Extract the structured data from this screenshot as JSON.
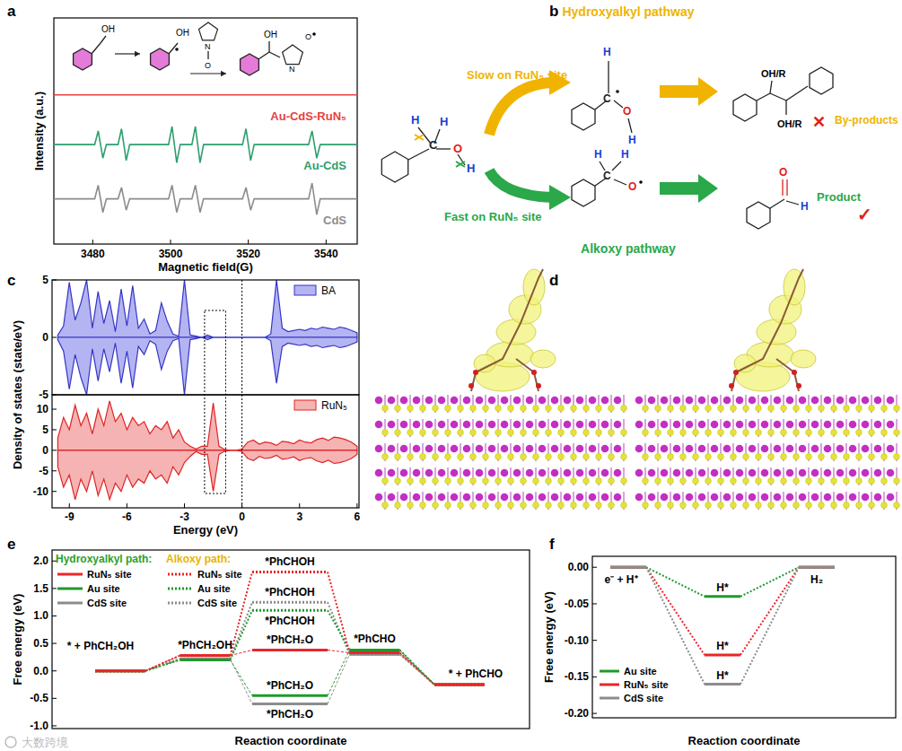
{
  "panel_labels": [
    "a",
    "b",
    "c",
    "d",
    "e",
    "f"
  ],
  "watermark": "大数跨境",
  "scheme": {
    "top_title": "Hydroxyalkyl pathway",
    "bottom_title": "Alkoxy pathway",
    "slow": "Slow on RuN₅ site",
    "fast": "Fast on RuN₅ site",
    "byproducts": "By-products",
    "product": "Product",
    "cross": "✕",
    "check": "✓",
    "reactant_atoms": [
      "H",
      "H",
      "C",
      "O",
      "H"
    ],
    "hydroxyalkyl_atoms": [
      "H",
      "C",
      "O",
      "H"
    ],
    "alkoxy_atoms": [
      "H",
      "H",
      "C",
      "O"
    ],
    "diol_groups": [
      "OH/R",
      "OH/R"
    ],
    "aldehyde_atoms": [
      "O",
      "H"
    ]
  },
  "chart_data": [
    {
      "type": "line",
      "x_label": "Magnetic field(G)",
      "y_label": "Intensity (a.u.)",
      "xlim": [
        3470,
        3548
      ],
      "xticks": [
        3480,
        3500,
        3520,
        3540
      ],
      "ylim": [
        0,
        10
      ],
      "tick_labels": "x",
      "inset_labels": [
        "OH",
        "OH",
        "N",
        "O",
        "OH",
        "N",
        "O"
      ],
      "x": [
        3470,
        3480.5,
        3481.4,
        3482.6,
        3483.5,
        3486.5,
        3487.4,
        3488.6,
        3489.5,
        3499.5,
        3500.4,
        3501.6,
        3502.5,
        3505.5,
        3506.4,
        3507.6,
        3508.5,
        3518.5,
        3519.4,
        3520.6,
        3521.5,
        3535.5,
        3536.4,
        3537.6,
        3538.5,
        3548
      ],
      "series": [
        {
          "name": "Au-CdS-RuN₅",
          "color": "#e8413c",
          "values": [
            6.6,
            6.6,
            6.6,
            6.6,
            6.6,
            6.6,
            6.6,
            6.6,
            6.6,
            6.6,
            6.6,
            6.6,
            6.6,
            6.6,
            6.6,
            6.6,
            6.6,
            6.6,
            6.6,
            6.6,
            6.6,
            6.6,
            6.6,
            6.6,
            6.6,
            6.6
          ]
        },
        {
          "name": "Au-CdS",
          "color": "#2e9e6e",
          "values": [
            4.4,
            4.4,
            5.0,
            3.8,
            4.4,
            4.4,
            5.1,
            3.7,
            4.4,
            4.4,
            5.2,
            3.6,
            4.4,
            4.4,
            5.2,
            3.6,
            4.4,
            4.4,
            5.1,
            3.7,
            4.4,
            4.4,
            5.0,
            3.8,
            4.4,
            4.4
          ]
        },
        {
          "name": "CdS",
          "color": "#8c8c8c",
          "values": [
            2.0,
            2.0,
            2.6,
            1.4,
            2.0,
            2.0,
            2.5,
            1.5,
            2.0,
            2.0,
            2.6,
            1.4,
            2.0,
            2.0,
            2.6,
            1.4,
            2.0,
            2.0,
            2.5,
            1.5,
            2.0,
            2.0,
            2.7,
            1.3,
            2.0,
            2.0
          ]
        }
      ]
    },
    {
      "type": "area",
      "x_label": "Energy (eV)",
      "y_label": "Density of states (state/eV)",
      "xlim": [
        -9.9,
        6.1
      ],
      "xticks": [
        -9,
        -6,
        -3,
        0,
        3,
        6
      ],
      "fermi_level": 0,
      "highlight_x": [
        -1.95,
        -0.85
      ],
      "x": [
        -9.6,
        -9.3,
        -9.0,
        -8.7,
        -8.4,
        -8.1,
        -7.8,
        -7.5,
        -7.2,
        -6.9,
        -6.6,
        -6.3,
        -6.0,
        -5.7,
        -5.4,
        -5.1,
        -4.8,
        -4.5,
        -4.2,
        -3.9,
        -3.6,
        -3.3,
        -3.0,
        -2.7,
        -2.4,
        -2.1,
        -1.8,
        -1.5,
        -1.2,
        -0.9,
        -0.6,
        -0.3,
        0,
        0.3,
        0.6,
        0.9,
        1.2,
        1.5,
        1.8,
        2.1,
        2.4,
        2.7,
        3.0,
        3.3,
        3.6,
        3.9,
        4.2,
        4.5,
        4.8,
        5.1,
        5.4,
        5.7,
        6.0
      ],
      "panels": [
        {
          "name": "BA",
          "color": "#3535c8",
          "fill": "#b4b4f2",
          "ylim": [
            -5,
            5
          ],
          "yticks": [
            -5,
            0,
            5
          ],
          "up": [
            0.2,
            1.0,
            4.8,
            1.5,
            3.0,
            5.0,
            0.8,
            4.0,
            1.2,
            3.2,
            0.5,
            4.2,
            1.0,
            4.5,
            0.8,
            1.6,
            0.3,
            0.6,
            3.0,
            1.4,
            0.3,
            0.1,
            5.0,
            0.2,
            0.1,
            0,
            0.2,
            0,
            0,
            0,
            0,
            0,
            0,
            0,
            0,
            0,
            0,
            0.3,
            5.0,
            0.8,
            0.5,
            0.6,
            0.7,
            0.6,
            0.8,
            0.7,
            0.9,
            0.8,
            0.7,
            0.9,
            0.8,
            0.6,
            0.4
          ],
          "down": [
            -0.2,
            -1.2,
            -4.5,
            -1.5,
            -3.5,
            -5.0,
            -1.0,
            -3.8,
            -1.0,
            -3.0,
            -0.5,
            -4.0,
            -1.2,
            -4.4,
            -0.8,
            -1.5,
            -0.3,
            -0.6,
            -2.8,
            -1.2,
            -0.3,
            -0.1,
            -5.0,
            -0.2,
            -0.1,
            0,
            -0.2,
            0,
            0,
            0,
            0,
            0,
            0,
            0,
            0,
            0,
            0,
            -0.3,
            -4.0,
            -0.8,
            -0.5,
            -0.6,
            -0.7,
            -0.6,
            -0.8,
            -0.7,
            -0.9,
            -0.8,
            -0.7,
            -0.9,
            -0.8,
            -0.6,
            -0.4
          ]
        },
        {
          "name": "RuN₅",
          "color": "#e02424",
          "fill": "#f5b3b3",
          "ylim": [
            -14,
            13.5
          ],
          "yticks": [
            -10,
            -5,
            0,
            5,
            10
          ],
          "up": [
            3,
            8,
            5,
            11,
            6,
            9,
            4,
            10,
            6,
            12,
            7,
            9,
            5,
            8,
            6,
            7,
            4,
            6,
            5,
            7,
            3,
            5,
            2,
            1,
            0.3,
            1,
            1,
            11.5,
            1,
            0.2,
            0,
            0,
            0.3,
            2,
            2.5,
            1.5,
            2,
            1.8,
            1.2,
            2.2,
            2,
            1.6,
            2.5,
            2,
            1.8,
            2.6,
            3,
            2.4,
            3.2,
            3,
            2.6,
            2,
            1
          ],
          "down": [
            -4,
            -9,
            -6,
            -12,
            -7,
            -10,
            -5,
            -11,
            -7,
            -12,
            -8,
            -10,
            -6,
            -9,
            -7,
            -8,
            -5,
            -7,
            -6,
            -8,
            -4,
            -6,
            -3,
            -1.5,
            -0.3,
            -1,
            -1,
            -10,
            -1,
            -0.2,
            0,
            0,
            -0.3,
            -2,
            -2.5,
            -1.5,
            -2,
            -1.8,
            -1.2,
            -2.2,
            -2,
            -1.6,
            -2.5,
            -2,
            -1.8,
            -2.6,
            -3,
            -2.4,
            -3.2,
            -3,
            -2.6,
            -2,
            -1
          ]
        }
      ]
    },
    {
      "type": "line",
      "x_label": "Reaction coordinate",
      "y_label": "Free energy (eV)",
      "ylim": [
        -1.05,
        2.2
      ],
      "yticks": [
        {
          "value": -1,
          "label": "-1.0"
        },
        {
          "value": -0.5,
          "label": "-0.5"
        },
        {
          "value": 0,
          "label": "0.0"
        },
        {
          "value": 0.5,
          "label": "0.5"
        },
        {
          "value": 1,
          "label": "1.0"
        },
        {
          "value": 1.5,
          "label": "1.5"
        },
        {
          "value": 2,
          "label": "2.0"
        }
      ],
      "legend": "upper left",
      "categories": [
        "* + PhCH₂OH",
        "*PhCH₂OH",
        null,
        "*PhCHO",
        "* + PhCHO"
      ],
      "legend_groups": [
        {
          "title": "Hydroxyalkyl path:",
          "color": "#2ca02c"
        },
        {
          "title": "Alkoxy path:",
          "color": "#e6b400"
        }
      ],
      "series": [
        {
          "name": "RuN₅ site",
          "color": "#e8262a",
          "line_style": "solid",
          "group": 0,
          "label": "*PhCH₂O",
          "values": [
            0,
            0.28,
            0.38,
            0.33,
            -0.25
          ]
        },
        {
          "name": "Au site",
          "color": "#1f9a2c",
          "line_style": "solid",
          "group": 0,
          "label": "*PhCH₂O",
          "values": [
            0,
            0.2,
            -0.45,
            0.38,
            -0.25
          ]
        },
        {
          "name": "CdS site",
          "color": "#8c8c8c",
          "line_style": "solid",
          "group": 0,
          "label": "*PhCH₂O",
          "values": [
            0,
            0.22,
            -0.6,
            0.3,
            -0.25
          ]
        },
        {
          "name": "RuN₅ site",
          "color": "#e8262a",
          "line_style": "dotted",
          "group": 1,
          "label": "*PhCHOH",
          "values": [
            0,
            0.28,
            1.8,
            0.33,
            -0.25
          ]
        },
        {
          "name": "Au site",
          "color": "#1f9a2c",
          "line_style": "dotted",
          "group": 1,
          "label": "*PhCHOH",
          "values": [
            0,
            0.2,
            1.1,
            0.38,
            -0.25
          ]
        },
        {
          "name": "CdS site",
          "color": "#8c8c8c",
          "line_style": "dotted",
          "group": 1,
          "label": "*PhCHOH",
          "values": [
            0,
            0.22,
            1.25,
            0.3,
            -0.25
          ]
        }
      ]
    },
    {
      "type": "line",
      "x_label": "Reaction coordinate",
      "y_label": "Free energy (eV)",
      "ylim": [
        -0.206,
        0.015
      ],
      "yticks": [
        {
          "value": -0.2,
          "label": "-0.20"
        },
        {
          "value": -0.15,
          "label": "-0.15"
        },
        {
          "value": -0.1,
          "label": "-0.10"
        },
        {
          "value": -0.05,
          "label": "-0.05"
        },
        {
          "value": 0,
          "label": "0.00"
        }
      ],
      "legend": "lower left",
      "categories": [
        "e⁻ + H⁺",
        "H*",
        "H₂"
      ],
      "series": [
        {
          "name": "Au site",
          "color": "#1f9a2c",
          "values": [
            0,
            -0.04,
            0
          ]
        },
        {
          "name": "RuN₅ site",
          "color": "#e8262a",
          "values": [
            0,
            -0.12,
            0
          ]
        },
        {
          "name": "CdS site",
          "color": "#8c8c8c",
          "values": [
            0,
            -0.16,
            0
          ]
        }
      ]
    }
  ]
}
